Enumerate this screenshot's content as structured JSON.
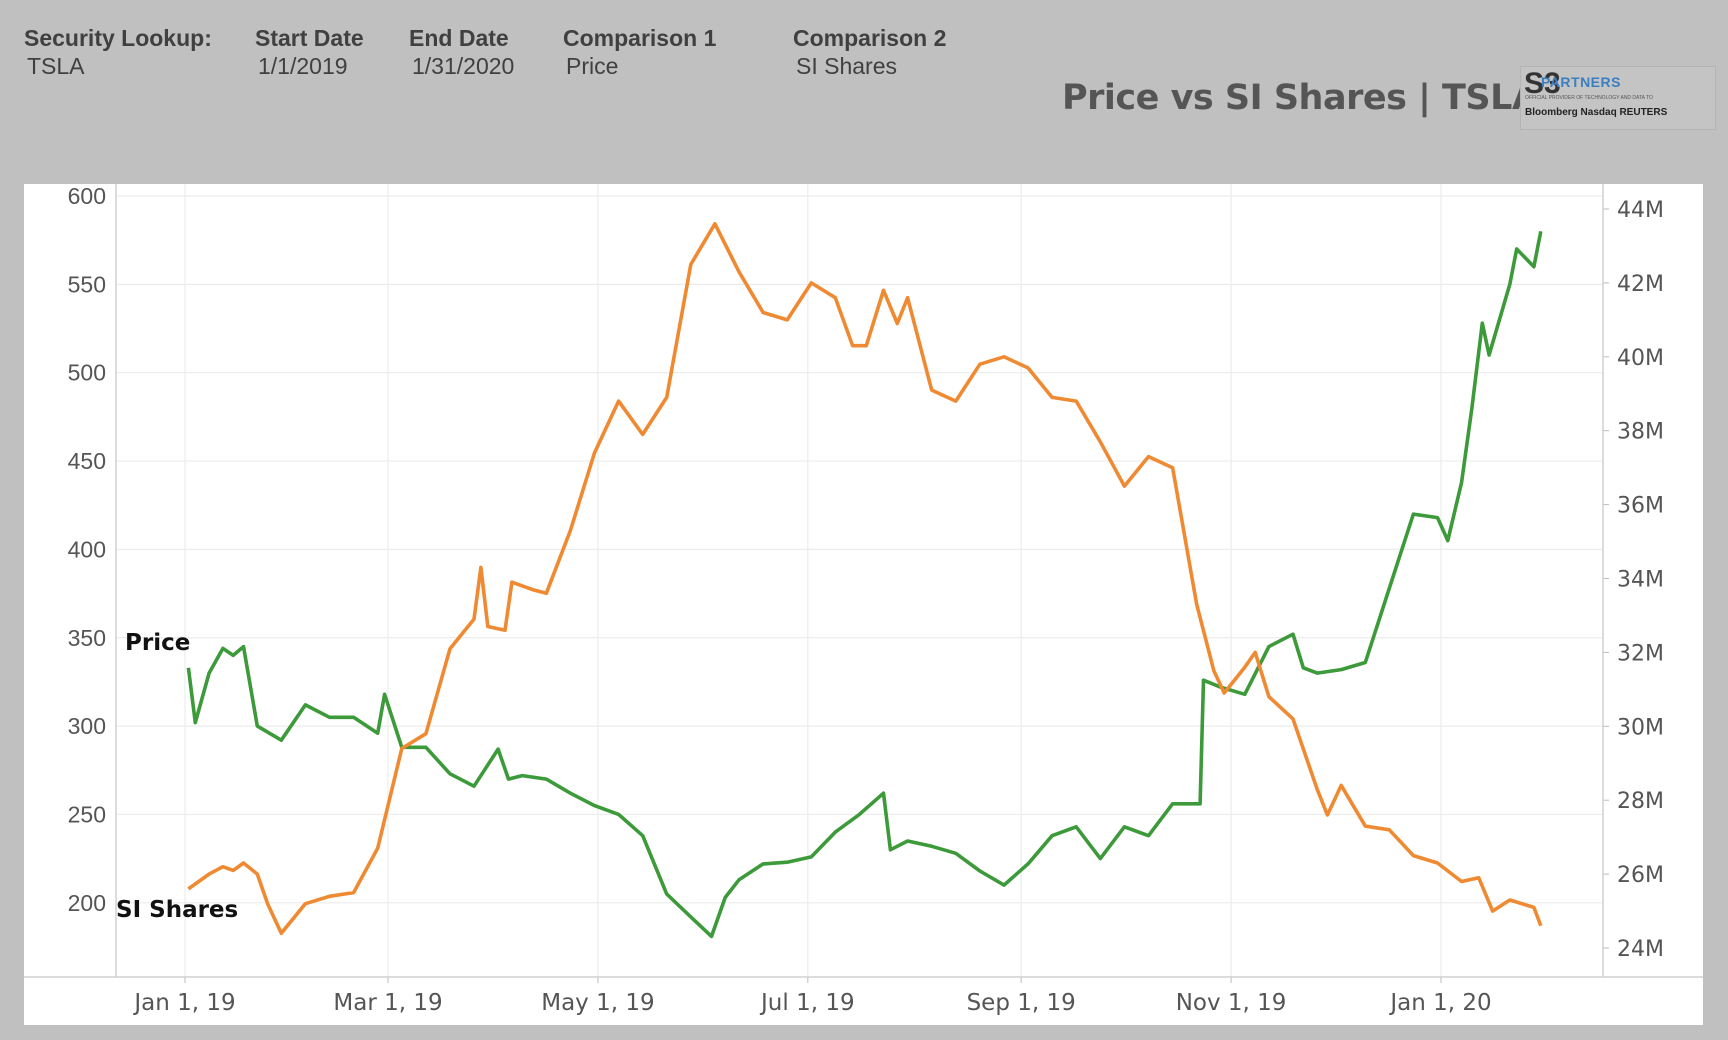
{
  "header": {
    "fields": [
      {
        "label": "Security Lookup:",
        "value": "TSLA"
      },
      {
        "label": "Start Date",
        "value": "1/1/2019"
      },
      {
        "label": "End Date",
        "value": "1/31/2020"
      },
      {
        "label": "Comparison 1",
        "value": "Price"
      },
      {
        "label": "Comparison 2",
        "value": "SI Shares"
      }
    ],
    "title": "Price vs SI Shares | TSLA"
  },
  "logo": {
    "mark": "S3",
    "name": "PARTNERS",
    "tagline": "OFFICIAL PROVIDER OF TECHNOLOGY AND DATA TO",
    "brands": "Bloomberg  Nasdaq  REUTERS"
  },
  "chart_data": {
    "type": "line",
    "title": "Price vs SI Shares | TSLA",
    "x_ticks": [
      "Jan 1, 19",
      "Mar 1, 19",
      "May 1, 19",
      "Jul 1, 19",
      "Sep 1, 19",
      "Nov 1, 19",
      "Jan 1, 20"
    ],
    "x_tick_dates": [
      "2019-01-01",
      "2019-03-01",
      "2019-05-01",
      "2019-07-01",
      "2019-09-01",
      "2019-11-01",
      "2020-01-01"
    ],
    "y_left": {
      "ticks": [
        "600",
        "550",
        "500",
        "450",
        "400",
        "350",
        "300",
        "250",
        "200"
      ],
      "range": [
        158,
        607
      ]
    },
    "y_right": {
      "ticks": [
        "44M",
        "42M",
        "40M",
        "38M",
        "36M",
        "34M",
        "32M",
        "30M",
        "28M",
        "26M",
        "24M"
      ],
      "range": [
        23.1,
        44.7
      ]
    },
    "grid": true,
    "colors": {
      "price": "#3d9a3a",
      "si_shares": "#ef8a32"
    },
    "series": [
      {
        "name": "Price",
        "axis": "left",
        "points": [
          [
            "2019-01-02",
            333
          ],
          [
            "2019-01-04",
            302
          ],
          [
            "2019-01-08",
            330
          ],
          [
            "2019-01-12",
            344
          ],
          [
            "2019-01-15",
            340
          ],
          [
            "2019-01-18",
            345
          ],
          [
            "2019-01-22",
            300
          ],
          [
            "2019-01-29",
            292
          ],
          [
            "2019-02-05",
            312
          ],
          [
            "2019-02-12",
            305
          ],
          [
            "2019-02-19",
            305
          ],
          [
            "2019-02-26",
            296
          ],
          [
            "2019-02-28",
            318
          ],
          [
            "2019-03-05",
            288
          ],
          [
            "2019-03-12",
            288
          ],
          [
            "2019-03-19",
            273
          ],
          [
            "2019-03-26",
            266
          ],
          [
            "2019-04-02",
            287
          ],
          [
            "2019-04-05",
            270
          ],
          [
            "2019-04-09",
            272
          ],
          [
            "2019-04-16",
            270
          ],
          [
            "2019-04-23",
            262
          ],
          [
            "2019-04-30",
            255
          ],
          [
            "2019-05-07",
            250
          ],
          [
            "2019-05-14",
            238
          ],
          [
            "2019-05-21",
            205
          ],
          [
            "2019-05-28",
            192
          ],
          [
            "2019-06-03",
            181
          ],
          [
            "2019-06-07",
            203
          ],
          [
            "2019-06-11",
            213
          ],
          [
            "2019-06-18",
            222
          ],
          [
            "2019-06-25",
            223
          ],
          [
            "2019-07-02",
            226
          ],
          [
            "2019-07-09",
            240
          ],
          [
            "2019-07-16",
            250
          ],
          [
            "2019-07-23",
            262
          ],
          [
            "2019-07-25",
            230
          ],
          [
            "2019-07-30",
            235
          ],
          [
            "2019-08-06",
            232
          ],
          [
            "2019-08-13",
            228
          ],
          [
            "2019-08-20",
            218
          ],
          [
            "2019-08-27",
            210
          ],
          [
            "2019-09-03",
            222
          ],
          [
            "2019-09-10",
            238
          ],
          [
            "2019-09-17",
            243
          ],
          [
            "2019-09-24",
            225
          ],
          [
            "2019-10-01",
            243
          ],
          [
            "2019-10-08",
            238
          ],
          [
            "2019-10-15",
            256
          ],
          [
            "2019-10-23",
            256
          ],
          [
            "2019-10-24",
            326
          ],
          [
            "2019-10-29",
            322
          ],
          [
            "2019-11-05",
            318
          ],
          [
            "2019-11-12",
            345
          ],
          [
            "2019-11-19",
            352
          ],
          [
            "2019-11-22",
            333
          ],
          [
            "2019-11-26",
            330
          ],
          [
            "2019-12-03",
            332
          ],
          [
            "2019-12-10",
            336
          ],
          [
            "2019-12-17",
            378
          ],
          [
            "2019-12-24",
            420
          ],
          [
            "2019-12-31",
            418
          ],
          [
            "2020-01-03",
            405
          ],
          [
            "2020-01-07",
            438
          ],
          [
            "2020-01-10",
            480
          ],
          [
            "2020-01-13",
            528
          ],
          [
            "2020-01-15",
            510
          ],
          [
            "2020-01-21",
            550
          ],
          [
            "2020-01-23",
            570
          ],
          [
            "2020-01-28",
            560
          ],
          [
            "2020-01-30",
            580
          ]
        ]
      },
      {
        "name": "SI Shares",
        "axis": "right",
        "unit": "M",
        "points": [
          [
            "2019-01-02",
            25.6
          ],
          [
            "2019-01-08",
            26.0
          ],
          [
            "2019-01-12",
            26.2
          ],
          [
            "2019-01-15",
            26.1
          ],
          [
            "2019-01-18",
            26.3
          ],
          [
            "2019-01-22",
            26.0
          ],
          [
            "2019-01-25",
            25.2
          ],
          [
            "2019-01-29",
            24.4
          ],
          [
            "2019-02-05",
            25.2
          ],
          [
            "2019-02-12",
            25.4
          ],
          [
            "2019-02-19",
            25.5
          ],
          [
            "2019-02-26",
            26.7
          ],
          [
            "2019-03-05",
            29.4
          ],
          [
            "2019-03-12",
            29.8
          ],
          [
            "2019-03-19",
            32.1
          ],
          [
            "2019-03-26",
            32.9
          ],
          [
            "2019-03-28",
            34.3
          ],
          [
            "2019-03-30",
            32.7
          ],
          [
            "2019-04-04",
            32.6
          ],
          [
            "2019-04-06",
            33.9
          ],
          [
            "2019-04-12",
            33.7
          ],
          [
            "2019-04-16",
            33.6
          ],
          [
            "2019-04-23",
            35.3
          ],
          [
            "2019-04-30",
            37.4
          ],
          [
            "2019-05-07",
            38.8
          ],
          [
            "2019-05-14",
            37.9
          ],
          [
            "2019-05-21",
            38.9
          ],
          [
            "2019-05-28",
            42.5
          ],
          [
            "2019-06-04",
            43.6
          ],
          [
            "2019-06-11",
            42.3
          ],
          [
            "2019-06-18",
            41.2
          ],
          [
            "2019-06-25",
            41.0
          ],
          [
            "2019-07-02",
            42.0
          ],
          [
            "2019-07-09",
            41.6
          ],
          [
            "2019-07-14",
            40.3
          ],
          [
            "2019-07-18",
            40.3
          ],
          [
            "2019-07-23",
            41.8
          ],
          [
            "2019-07-27",
            40.9
          ],
          [
            "2019-07-30",
            41.6
          ],
          [
            "2019-08-06",
            39.1
          ],
          [
            "2019-08-13",
            38.8
          ],
          [
            "2019-08-20",
            39.8
          ],
          [
            "2019-08-27",
            40.0
          ],
          [
            "2019-09-03",
            39.7
          ],
          [
            "2019-09-10",
            38.9
          ],
          [
            "2019-09-17",
            38.8
          ],
          [
            "2019-09-24",
            37.7
          ],
          [
            "2019-10-01",
            36.5
          ],
          [
            "2019-10-08",
            37.3
          ],
          [
            "2019-10-15",
            37.0
          ],
          [
            "2019-10-22",
            33.3
          ],
          [
            "2019-10-27",
            31.5
          ],
          [
            "2019-10-30",
            30.9
          ],
          [
            "2019-11-05",
            31.6
          ],
          [
            "2019-11-08",
            32.0
          ],
          [
            "2019-11-12",
            30.8
          ],
          [
            "2019-11-19",
            30.2
          ],
          [
            "2019-11-26",
            28.3
          ],
          [
            "2019-11-29",
            27.6
          ],
          [
            "2019-12-03",
            28.4
          ],
          [
            "2019-12-10",
            27.3
          ],
          [
            "2019-12-17",
            27.2
          ],
          [
            "2019-12-24",
            26.5
          ],
          [
            "2019-12-31",
            26.3
          ],
          [
            "2020-01-07",
            25.8
          ],
          [
            "2020-01-12",
            25.9
          ],
          [
            "2020-01-16",
            25.0
          ],
          [
            "2020-01-21",
            25.3
          ],
          [
            "2020-01-28",
            25.1
          ],
          [
            "2020-01-30",
            24.6
          ]
        ]
      }
    ],
    "annotations": [
      "Price",
      "SI Shares"
    ]
  }
}
